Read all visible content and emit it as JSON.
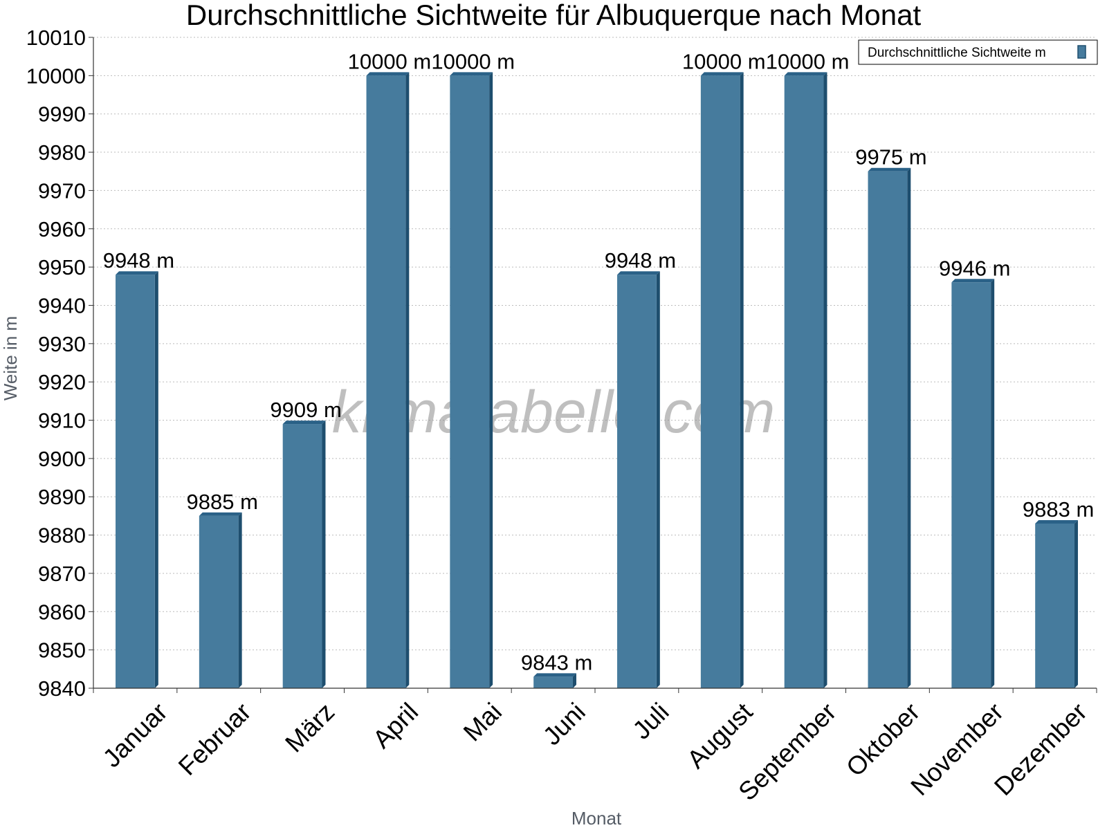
{
  "colors": {
    "bar_front": "#467b9d",
    "bar_side": "#1e4e6e",
    "bar_top": "#2a6187",
    "grid": "#bbbbbb",
    "axis": "#333333"
  },
  "watermark": "klimatabelle.com",
  "chart_data": {
    "type": "bar",
    "title": "Durchschnittliche Sichtweite für Albuquerque nach Monat",
    "xlabel": "Monat",
    "ylabel": "Weite in m",
    "ylim": [
      9840,
      10010
    ],
    "ytick_step": 10,
    "grid": true,
    "legend_position": "top-right",
    "value_suffix": " m",
    "categories": [
      "Januar",
      "Februar",
      "März",
      "April",
      "Mai",
      "Juni",
      "Juli",
      "August",
      "September",
      "Oktober",
      "November",
      "Dezember"
    ],
    "series": [
      {
        "name": "Durchschnittliche Sichtweite m",
        "values": [
          9948,
          9885,
          9909,
          10000,
          10000,
          9843,
          9948,
          10000,
          10000,
          9975,
          9946,
          9883
        ]
      }
    ]
  }
}
